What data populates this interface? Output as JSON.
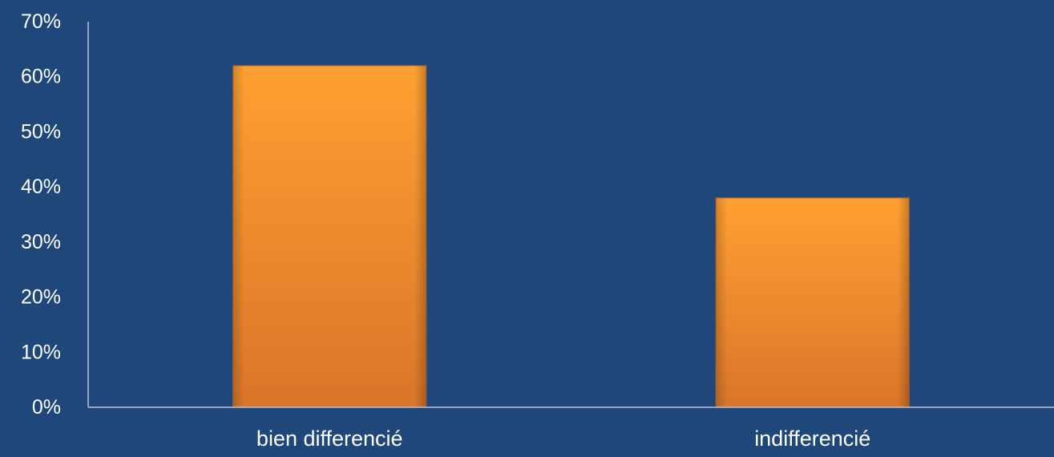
{
  "chart_data": {
    "type": "bar",
    "categories": [
      "bien differencié",
      "indifferencié"
    ],
    "values": [
      62,
      38
    ],
    "ylim": [
      0,
      70
    ],
    "yticks": [
      0,
      10,
      20,
      30,
      40,
      50,
      60,
      70
    ],
    "ytick_suffix": "%",
    "ytick_labels": [
      "0%",
      "10%",
      "20%",
      "30%",
      "40%",
      "50%",
      "60%",
      "70%"
    ],
    "grid": false,
    "legend": "none",
    "colors": {
      "background": "#1f477a",
      "bar_top": "#ffa032",
      "bar_bottom": "#d9752a",
      "axis": "#b9c3d1",
      "text": "#ffffff"
    }
  }
}
